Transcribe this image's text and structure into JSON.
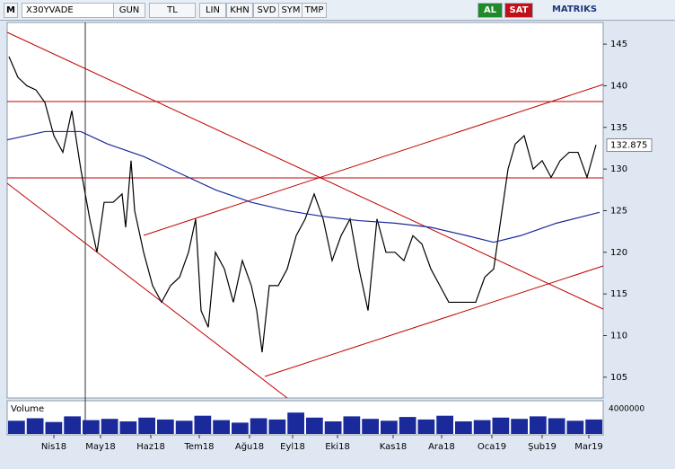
{
  "toolbar": {
    "logo": "M",
    "symbol": "X30YVADE",
    "period": "GUN",
    "currency": "TL",
    "buttons": [
      "LIN",
      "KHN",
      "SVD",
      "SYM",
      "TMP"
    ],
    "buy": "AL",
    "sell": "SAT",
    "brand": "MATRIKS"
  },
  "chart_data": {
    "type": "line",
    "xlim": [
      0,
      332
    ],
    "ylim": [
      102.5,
      147.6
    ],
    "yticks": [
      105,
      110,
      115,
      120,
      125,
      130,
      135,
      140,
      145
    ],
    "xticks": [
      {
        "value": 26,
        "label": "Nis18"
      },
      {
        "value": 52,
        "label": "May18"
      },
      {
        "value": 80,
        "label": "Haz18"
      },
      {
        "value": 107,
        "label": "Tem18"
      },
      {
        "value": 135,
        "label": "Ağu18"
      },
      {
        "value": 159,
        "label": "Eyl18"
      },
      {
        "value": 184,
        "label": "Eki18"
      },
      {
        "value": 215,
        "label": "Kas18"
      },
      {
        "value": 242,
        "label": "Ara18"
      },
      {
        "value": 270,
        "label": "Oca19"
      },
      {
        "value": 298,
        "label": "Şub19"
      },
      {
        "value": 324,
        "label": "Mar19"
      }
    ],
    "last_value": 132.875,
    "series": [
      {
        "color": "#000000",
        "x": [
          1,
          6,
          11,
          16,
          21,
          26,
          31,
          36,
          41,
          46,
          50,
          54,
          59,
          64,
          66,
          69,
          71,
          76,
          81,
          86,
          91,
          96,
          101,
          105,
          108,
          112,
          116,
          121,
          126,
          131,
          136,
          139,
          142,
          146,
          151,
          156,
          161,
          166,
          171,
          176,
          181,
          186,
          191,
          196,
          201,
          206,
          211,
          216,
          221,
          226,
          231,
          236,
          241,
          246,
          251,
          256,
          261,
          266,
          271,
          275,
          279,
          283,
          288,
          293,
          298,
          303,
          308,
          313,
          318,
          323,
          328
        ],
        "values": [
          143.5,
          141,
          140,
          139.5,
          138,
          134,
          132,
          137,
          130,
          124,
          120,
          126,
          126,
          127,
          123,
          131,
          125,
          120,
          116,
          114,
          116,
          117,
          120,
          124,
          113,
          111,
          120,
          118,
          114,
          119,
          116,
          113,
          108,
          116,
          116,
          118,
          122,
          124,
          127,
          124,
          119,
          122,
          124,
          118,
          113,
          124,
          120,
          120,
          119,
          122,
          121,
          118,
          116,
          114,
          114,
          114,
          114,
          117,
          118,
          124,
          130,
          133,
          134,
          130,
          131,
          129,
          131,
          132,
          132,
          129,
          132.9
        ]
      },
      {
        "color": "#1a2a9a",
        "x": [
          0,
          21,
          41,
          56,
          76,
          96,
          116,
          136,
          156,
          176,
          196,
          216,
          236,
          256,
          271,
          286,
          306,
          330
        ],
        "values": [
          133.5,
          134.5,
          134.5,
          133,
          131.5,
          129.5,
          127.5,
          126,
          125,
          124.3,
          123.8,
          123.5,
          123,
          122,
          121.2,
          122,
          123.5,
          124.8
        ]
      }
    ],
    "volume": {
      "label": "Volume",
      "ylim": [
        0,
        5000000
      ],
      "yticks": [
        4000000
      ],
      "values": [
        2100000,
        2500000,
        1900000,
        2800000,
        2200000,
        2400000,
        2000000,
        2600000,
        2300000,
        2100000,
        2900000,
        2200000,
        1800000,
        2500000,
        2300000,
        3400000,
        2600000,
        2000000,
        2800000,
        2400000,
        2100000,
        2700000,
        2300000,
        2900000,
        2000000,
        2200000,
        2600000,
        2400000,
        2800000,
        2500000,
        2100000,
        2300000
      ]
    }
  }
}
